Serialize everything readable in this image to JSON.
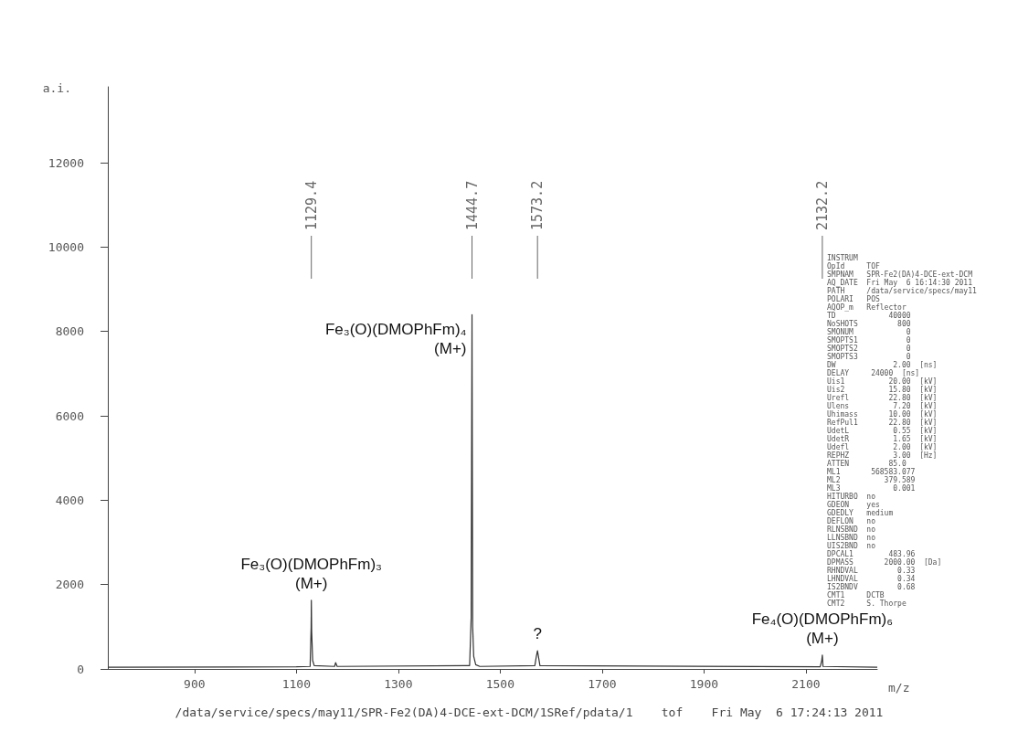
{
  "chart_data": {
    "type": "line",
    "xlabel": "m/z",
    "ylabel": "a.i.",
    "xlim": [
      730,
      2240
    ],
    "xticks": [
      900,
      1100,
      1300,
      1500,
      1700,
      1900,
      2100
    ],
    "ylim": [
      0,
      13800
    ],
    "yticks": [
      0,
      2000,
      4000,
      6000,
      8000,
      10000,
      12000
    ],
    "series": [
      {
        "color": "#333333",
        "x": [
          730,
          1100,
          1127,
          1129,
          1129.4,
          1130,
          1132,
          1135,
          1175,
          1177,
          1180,
          1440,
          1443,
          1444.7,
          1446,
          1448,
          1452,
          1460,
          1568,
          1571,
          1573.2,
          1575,
          1578,
          2128,
          2131,
          2132.2,
          2133.5,
          2240
        ],
        "values": [
          40,
          50,
          60,
          1000,
          1630,
          900,
          200,
          80,
          60,
          150,
          60,
          80,
          1200,
          8400,
          1000,
          300,
          100,
          60,
          80,
          300,
          430,
          300,
          80,
          50,
          200,
          330,
          60,
          40
        ]
      }
    ],
    "annotations": [
      {
        "text": "1129.4",
        "x": 1129.4
      },
      {
        "text": "1444.7",
        "x": 1444.7
      },
      {
        "text": "1573.2",
        "x": 1573.2
      },
      {
        "text": "2132.2",
        "x": 2132.2
      },
      {
        "text": "Fe₃(O)(DMOPhFm)₃\n(M+)",
        "x": 1129.4,
        "y": 1630
      },
      {
        "text": "Fe₃(O)(DMOPhFm)₄\n(M+)",
        "x": 1444.7,
        "y": 8400
      },
      {
        "text": "?",
        "x": 1573.2,
        "y": 430
      },
      {
        "text": "Fe₄(O)(DMOPhFm)₆\n(M+)",
        "x": 2132.2,
        "y": 330
      },
      "/data/service/specs/may11/SPR-Fe2(DA)4-DCE-ext-DCM/1SRef/pdata/1    tof    Fri May  6 17:24:13 2011",
      "INSTRUM\nOpId     TOF\nSMPNAM   SPR-Fe2(DA)4-DCE-ext-DCM\nAQ_DATE  Fri May  6 16:14:30 2011\nPATH     /data/service/specs/may11\nPOLARI   POS\nAQOP_m   Reflector\nTD            40000\nNoSHOTS         800\nSMONUM            0\nSMOPTS1           0\nSMOPTS2           0\nSMOPTS3           0\nDW             2.00  [ns]\nDELAY     24000  [ns]\nUis1          20.00  [kV]\nUis2          15.80  [kV]\nUrefl         22.80  [kV]\nUlens          7.20  [kV]\nUhimass       10.00  [kV]\nRefPul1       22.80  [kV]\nUdetL          0.55  [kV]\nUdetR          1.65  [kV]\nUdefl          2.00  [kV]\nREPHZ          3.00  [Hz]\nATTEN         85.0\nML1       568583.077\nML2          379.589\nML3            0.001\nHITURBO  no\nGDEON    yes\nGDEDLY   medium\nDEFLON   no\nRLNSBND  no\nLLNSBND  no\nUIS2BND  no\nDPCAL1        483.96\nDPMASS       2000.00  [Da]\nRHNDVAL         0.33\nLHNDVAL         0.34\nIS2BNDV         0.68\nCMT1     DCTB\nCMT2     S. Thorpe"
    ]
  }
}
